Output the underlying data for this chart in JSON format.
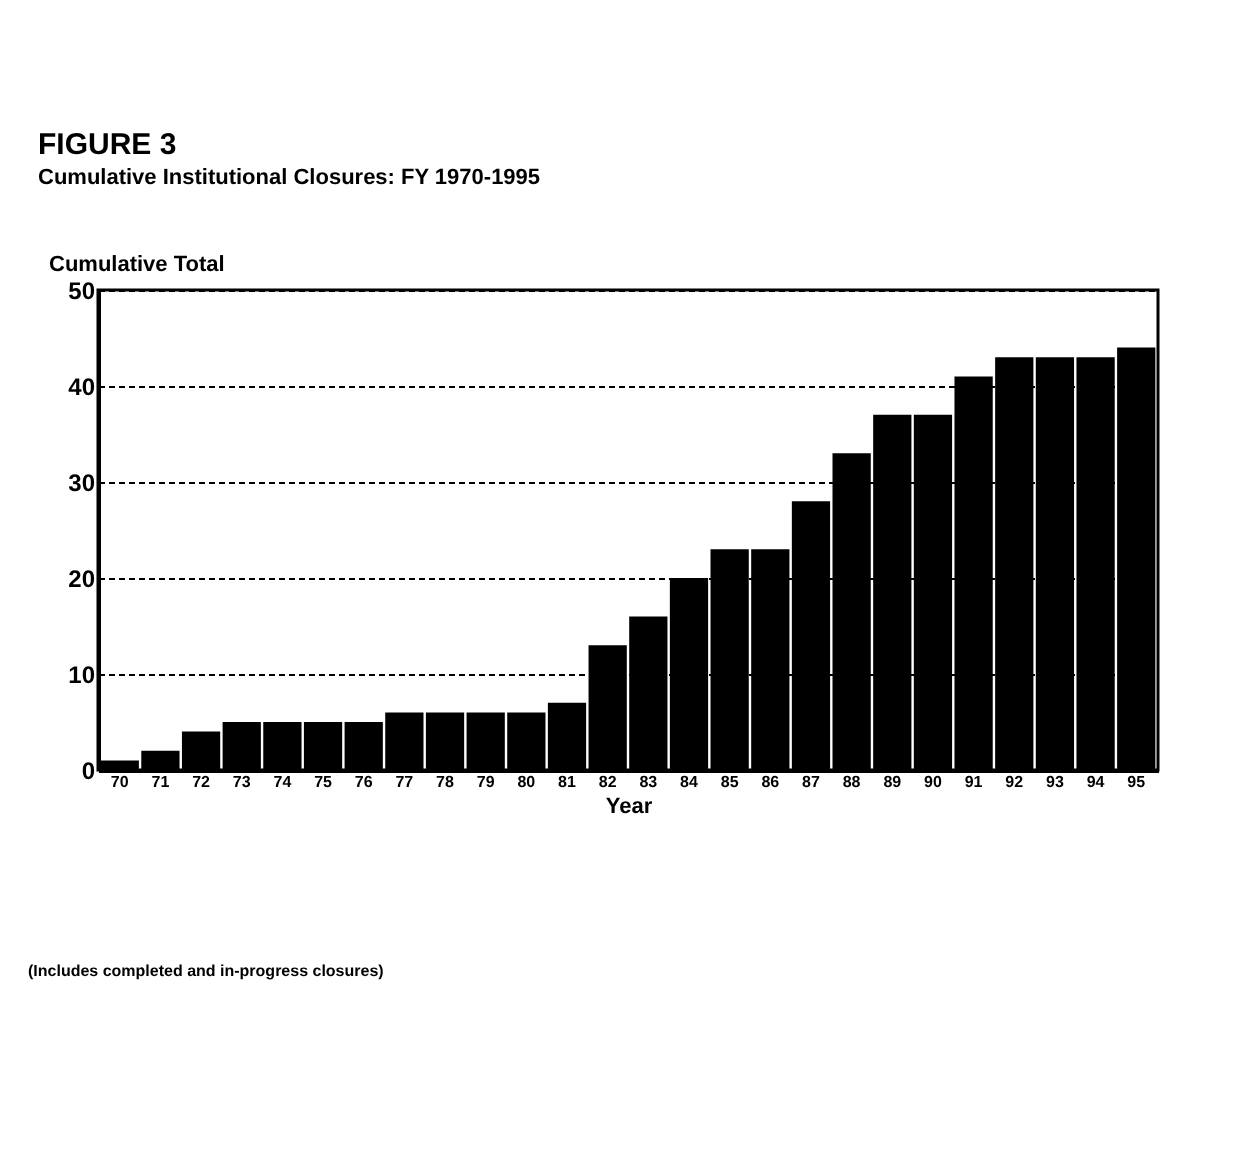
{
  "chart_data": {
    "type": "bar",
    "title": "FIGURE 3",
    "subtitle": "Cumulative Institutional Closures: FY 1970-1995",
    "xlabel": "Year",
    "ylabel": "Cumulative Total",
    "categories": [
      "70",
      "71",
      "72",
      "73",
      "74",
      "75",
      "76",
      "77",
      "78",
      "79",
      "80",
      "81",
      "82",
      "83",
      "84",
      "85",
      "86",
      "87",
      "88",
      "89",
      "90",
      "91",
      "92",
      "93",
      "94",
      "95"
    ],
    "values": [
      1,
      2,
      4,
      5,
      5,
      5,
      5,
      6,
      6,
      6,
      6,
      7,
      13,
      16,
      20,
      23,
      23,
      28,
      33,
      37,
      37,
      41,
      43,
      43,
      43,
      44
    ],
    "color": "#000000",
    "ylim": [
      0,
      50
    ],
    "yticks": [
      0,
      10,
      20,
      30,
      40,
      50
    ],
    "grid": "y",
    "annotations": [
      "(Includes completed and in-progress closures)"
    ]
  }
}
